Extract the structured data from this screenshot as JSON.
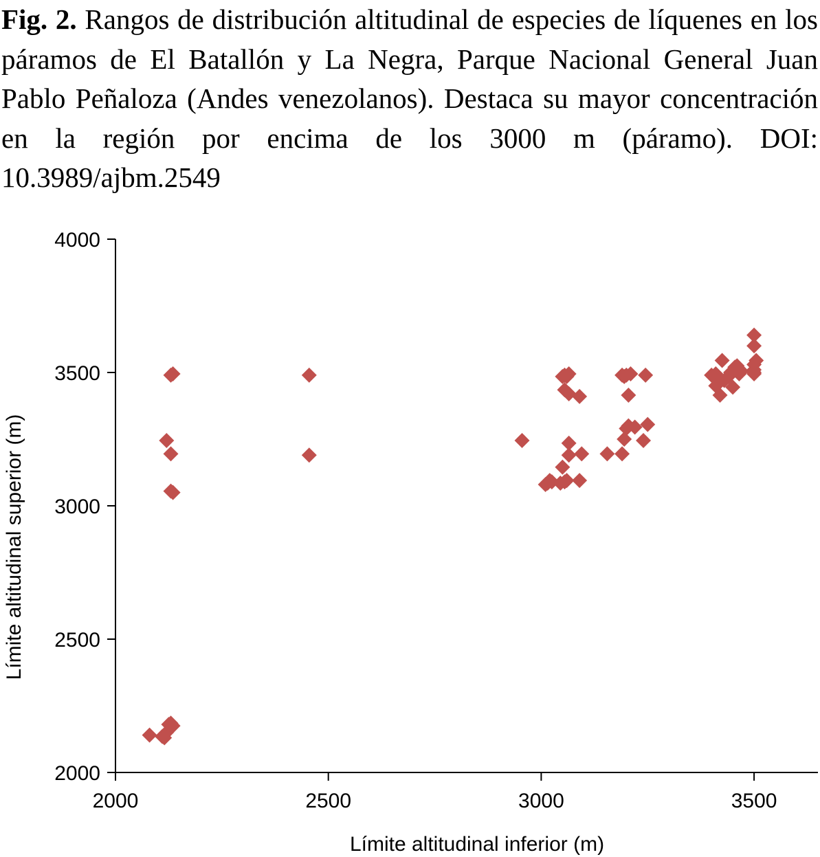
{
  "caption": {
    "label": "Fig. 2.",
    "text": "Rangos de distribución altitudinal de especies de líquenes en los páramos de El Batallón y La Negra, Parque Nacional General Juan Pablo Peñaloza (Andes venezolanos). Destaca su mayor concentración en la región por encima de los 3000 m (páramo). DOI: 10.3989/ajbm.2549"
  },
  "chart_data": {
    "type": "scatter",
    "title": "",
    "xlabel": "Límite altitudinal inferior (m)",
    "ylabel": "Límite altitudinal superior (m)",
    "xlim": [
      2000,
      3650
    ],
    "ylim": [
      2000,
      4000
    ],
    "xticks": [
      2000,
      2500,
      3000,
      3500
    ],
    "yticks": [
      2000,
      2500,
      3000,
      3500,
      4000
    ],
    "marker": "diamond",
    "color": "#C0504D",
    "grid": false,
    "series": [
      {
        "points": [
          [
            2080,
            2140
          ],
          [
            2110,
            2135
          ],
          [
            2115,
            2130
          ],
          [
            2120,
            2150
          ],
          [
            2125,
            2180
          ],
          [
            2130,
            2185
          ],
          [
            2135,
            2175
          ],
          [
            2120,
            3245
          ],
          [
            2130,
            3195
          ],
          [
            2130,
            3055
          ],
          [
            2135,
            3050
          ],
          [
            2130,
            3490
          ],
          [
            2135,
            3495
          ],
          [
            2455,
            3490
          ],
          [
            2455,
            3190
          ],
          [
            2955,
            3245
          ],
          [
            3010,
            3080
          ],
          [
            3015,
            3085
          ],
          [
            3020,
            3095
          ],
          [
            3025,
            3090
          ],
          [
            3045,
            3085
          ],
          [
            3050,
            3145
          ],
          [
            3055,
            3090
          ],
          [
            3060,
            3095
          ],
          [
            3065,
            3190
          ],
          [
            3065,
            3235
          ],
          [
            3050,
            3485
          ],
          [
            3055,
            3490
          ],
          [
            3060,
            3485
          ],
          [
            3065,
            3495
          ],
          [
            3055,
            3435
          ],
          [
            3065,
            3420
          ],
          [
            3090,
            3410
          ],
          [
            3090,
            3095
          ],
          [
            3095,
            3195
          ],
          [
            3155,
            3195
          ],
          [
            3190,
            3195
          ],
          [
            3195,
            3250
          ],
          [
            3200,
            3290
          ],
          [
            3205,
            3300
          ],
          [
            3220,
            3295
          ],
          [
            3190,
            3490
          ],
          [
            3195,
            3485
          ],
          [
            3200,
            3490
          ],
          [
            3210,
            3495
          ],
          [
            3205,
            3415
          ],
          [
            3240,
            3245
          ],
          [
            3250,
            3305
          ],
          [
            3245,
            3490
          ],
          [
            3400,
            3490
          ],
          [
            3410,
            3495
          ],
          [
            3415,
            3480
          ],
          [
            3420,
            3465
          ],
          [
            3410,
            3450
          ],
          [
            3420,
            3415
          ],
          [
            3425,
            3545
          ],
          [
            3430,
            3470
          ],
          [
            3440,
            3485
          ],
          [
            3445,
            3500
          ],
          [
            3450,
            3445
          ],
          [
            3455,
            3520
          ],
          [
            3460,
            3525
          ],
          [
            3465,
            3495
          ],
          [
            3470,
            3505
          ],
          [
            3500,
            3495
          ],
          [
            3500,
            3500
          ],
          [
            3500,
            3510
          ],
          [
            3500,
            3530
          ],
          [
            3505,
            3545
          ],
          [
            3500,
            3600
          ],
          [
            3500,
            3640
          ]
        ]
      }
    ]
  }
}
